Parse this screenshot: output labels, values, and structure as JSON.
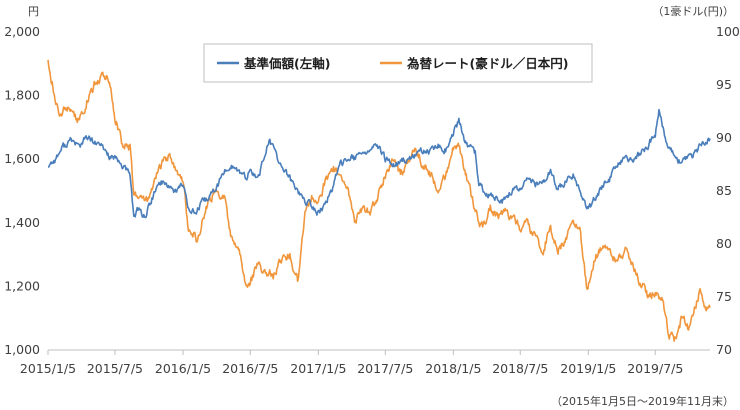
{
  "chart_data": {
    "type": "line",
    "left_unit": "円",
    "right_unit": "（1豪ドル(円)）",
    "period_note": "（2015年1月5日～2019年11月末）",
    "x_ticks": [
      "2015/1/5",
      "2015/7/5",
      "2016/1/5",
      "2016/7/5",
      "2017/1/5",
      "2017/7/5",
      "2018/1/5",
      "2018/7/5",
      "2019/1/5",
      "2019/7/5"
    ],
    "x_end": "2019/11/30",
    "y_left": {
      "min": 1000,
      "max": 2000,
      "ticks": [
        "1,000",
        "1,200",
        "1,400",
        "1,600",
        "1,800",
        "2,000"
      ]
    },
    "y_right": {
      "min": 70,
      "max": 100,
      "ticks": [
        "70",
        "75",
        "80",
        "85",
        "90",
        "95",
        "100"
      ]
    },
    "grid": false,
    "legend_position": "top",
    "series": [
      {
        "name": "基準価額(左軸)",
        "axis": "left",
        "color": "#4a7ebb",
        "points": [
          [
            "2015-01-05",
            1580
          ],
          [
            "2015-01-25",
            1600
          ],
          [
            "2015-02-15",
            1640
          ],
          [
            "2015-03-10",
            1660
          ],
          [
            "2015-03-31",
            1640
          ],
          [
            "2015-04-20",
            1670
          ],
          [
            "2015-05-10",
            1650
          ],
          [
            "2015-05-31",
            1640
          ],
          [
            "2015-06-20",
            1610
          ],
          [
            "2015-07-05",
            1600
          ],
          [
            "2015-07-25",
            1580
          ],
          [
            "2015-08-15",
            1550
          ],
          [
            "2015-08-25",
            1420
          ],
          [
            "2015-09-05",
            1440
          ],
          [
            "2015-09-25",
            1420
          ],
          [
            "2015-10-15",
            1480
          ],
          [
            "2015-11-05",
            1530
          ],
          [
            "2015-11-25",
            1520
          ],
          [
            "2015-12-15",
            1500
          ],
          [
            "2016-01-05",
            1520
          ],
          [
            "2016-01-20",
            1450
          ],
          [
            "2016-02-10",
            1430
          ],
          [
            "2016-02-25",
            1460
          ],
          [
            "2016-03-15",
            1480
          ],
          [
            "2016-04-05",
            1510
          ],
          [
            "2016-04-25",
            1560
          ],
          [
            "2016-05-15",
            1580
          ],
          [
            "2016-06-05",
            1560
          ],
          [
            "2016-06-20",
            1540
          ],
          [
            "2016-07-05",
            1560
          ],
          [
            "2016-07-25",
            1540
          ],
          [
            "2016-08-15",
            1620
          ],
          [
            "2016-08-25",
            1660
          ],
          [
            "2016-09-10",
            1620
          ],
          [
            "2016-09-30",
            1570
          ],
          [
            "2016-10-20",
            1540
          ],
          [
            "2016-11-10",
            1500
          ],
          [
            "2016-11-30",
            1470
          ],
          [
            "2016-12-20",
            1450
          ],
          [
            "2017-01-05",
            1430
          ],
          [
            "2017-01-25",
            1460
          ],
          [
            "2017-02-15",
            1520
          ],
          [
            "2017-03-05",
            1580
          ],
          [
            "2017-03-25",
            1610
          ],
          [
            "2017-04-15",
            1600
          ],
          [
            "2017-05-05",
            1620
          ],
          [
            "2017-05-25",
            1630
          ],
          [
            "2017-06-15",
            1640
          ],
          [
            "2017-07-05",
            1600
          ],
          [
            "2017-07-25",
            1580
          ],
          [
            "2017-08-15",
            1590
          ],
          [
            "2017-09-05",
            1600
          ],
          [
            "2017-09-25",
            1610
          ],
          [
            "2017-10-15",
            1630
          ],
          [
            "2017-11-05",
            1620
          ],
          [
            "2017-11-25",
            1640
          ],
          [
            "2017-12-15",
            1630
          ],
          [
            "2018-01-05",
            1680
          ],
          [
            "2018-01-20",
            1720
          ],
          [
            "2018-02-05",
            1650
          ],
          [
            "2018-02-20",
            1640
          ],
          [
            "2018-03-05",
            1620
          ],
          [
            "2018-03-15",
            1520
          ],
          [
            "2018-04-05",
            1490
          ],
          [
            "2018-04-25",
            1480
          ],
          [
            "2018-05-15",
            1460
          ],
          [
            "2018-06-05",
            1490
          ],
          [
            "2018-06-25",
            1510
          ],
          [
            "2018-07-05",
            1500
          ],
          [
            "2018-07-25",
            1540
          ],
          [
            "2018-08-15",
            1520
          ],
          [
            "2018-09-05",
            1530
          ],
          [
            "2018-09-25",
            1560
          ],
          [
            "2018-10-15",
            1510
          ],
          [
            "2018-11-05",
            1530
          ],
          [
            "2018-11-25",
            1550
          ],
          [
            "2018-12-15",
            1500
          ],
          [
            "2019-01-05",
            1440
          ],
          [
            "2019-01-25",
            1480
          ],
          [
            "2019-02-15",
            1520
          ],
          [
            "2019-03-05",
            1540
          ],
          [
            "2019-03-25",
            1580
          ],
          [
            "2019-04-15",
            1600
          ],
          [
            "2019-05-05",
            1590
          ],
          [
            "2019-05-25",
            1620
          ],
          [
            "2019-06-15",
            1640
          ],
          [
            "2019-06-30",
            1670
          ],
          [
            "2019-07-05",
            1680
          ],
          [
            "2019-07-15",
            1750
          ],
          [
            "2019-07-30",
            1680
          ],
          [
            "2019-08-15",
            1630
          ],
          [
            "2019-09-05",
            1590
          ],
          [
            "2019-09-25",
            1600
          ],
          [
            "2019-10-15",
            1610
          ],
          [
            "2019-11-05",
            1640
          ],
          [
            "2019-11-20",
            1660
          ],
          [
            "2019-11-30",
            1665
          ]
        ]
      },
      {
        "name": "為替レート(豪ドル／日本円)",
        "axis": "right",
        "color": "#f0963c",
        "points": [
          [
            "2015-01-05",
            97.5
          ],
          [
            "2015-01-20",
            94.5
          ],
          [
            "2015-02-05",
            92.0
          ],
          [
            "2015-02-20",
            93.0
          ],
          [
            "2015-03-10",
            92.5
          ],
          [
            "2015-03-31",
            91.5
          ],
          [
            "2015-04-20",
            93.5
          ],
          [
            "2015-05-10",
            95.0
          ],
          [
            "2015-05-31",
            96.0
          ],
          [
            "2015-06-20",
            95.5
          ],
          [
            "2015-07-05",
            92.0
          ],
          [
            "2015-07-25",
            89.5
          ],
          [
            "2015-08-15",
            89.0
          ],
          [
            "2015-08-25",
            84.5
          ],
          [
            "2015-09-10",
            85.0
          ],
          [
            "2015-09-30",
            84.0
          ],
          [
            "2015-10-20",
            86.0
          ],
          [
            "2015-11-10",
            87.5
          ],
          [
            "2015-11-30",
            88.5
          ],
          [
            "2015-12-20",
            87.0
          ],
          [
            "2016-01-05",
            86.0
          ],
          [
            "2016-01-20",
            81.5
          ],
          [
            "2016-02-10",
            80.5
          ],
          [
            "2016-02-25",
            82.0
          ],
          [
            "2016-03-15",
            84.0
          ],
          [
            "2016-04-05",
            85.0
          ],
          [
            "2016-04-25",
            84.5
          ],
          [
            "2016-05-15",
            80.5
          ],
          [
            "2016-06-05",
            79.5
          ],
          [
            "2016-06-24",
            76.0
          ],
          [
            "2016-07-05",
            76.5
          ],
          [
            "2016-07-25",
            78.0
          ],
          [
            "2016-08-15",
            77.5
          ],
          [
            "2016-09-05",
            77.0
          ],
          [
            "2016-09-25",
            78.5
          ],
          [
            "2016-10-20",
            79.0
          ],
          [
            "2016-11-10",
            76.5
          ],
          [
            "2016-11-30",
            83.0
          ],
          [
            "2016-12-20",
            84.5
          ],
          [
            "2017-01-05",
            84.0
          ],
          [
            "2017-01-25",
            86.0
          ],
          [
            "2017-02-15",
            87.0
          ],
          [
            "2017-03-05",
            86.5
          ],
          [
            "2017-03-25",
            85.0
          ],
          [
            "2017-04-15",
            82.0
          ],
          [
            "2017-05-05",
            83.5
          ],
          [
            "2017-05-25",
            83.0
          ],
          [
            "2017-06-15",
            84.5
          ],
          [
            "2017-07-05",
            86.5
          ],
          [
            "2017-07-25",
            88.0
          ],
          [
            "2017-08-15",
            86.5
          ],
          [
            "2017-09-05",
            88.0
          ],
          [
            "2017-09-25",
            89.0
          ],
          [
            "2017-10-15",
            87.5
          ],
          [
            "2017-11-05",
            86.5
          ],
          [
            "2017-11-25",
            85.0
          ],
          [
            "2017-12-15",
            86.5
          ],
          [
            "2018-01-05",
            89.0
          ],
          [
            "2018-01-20",
            89.5
          ],
          [
            "2018-02-05",
            87.0
          ],
          [
            "2018-02-20",
            85.0
          ],
          [
            "2018-03-05",
            83.0
          ],
          [
            "2018-03-25",
            81.5
          ],
          [
            "2018-04-15",
            83.5
          ],
          [
            "2018-05-05",
            82.5
          ],
          [
            "2018-05-25",
            83.0
          ],
          [
            "2018-06-15",
            82.5
          ],
          [
            "2018-07-05",
            81.5
          ],
          [
            "2018-07-25",
            82.0
          ],
          [
            "2018-08-15",
            80.5
          ],
          [
            "2018-09-05",
            79.5
          ],
          [
            "2018-09-25",
            81.5
          ],
          [
            "2018-10-15",
            79.5
          ],
          [
            "2018-11-05",
            80.5
          ],
          [
            "2018-11-25",
            82.0
          ],
          [
            "2018-12-15",
            81.0
          ],
          [
            "2019-01-02",
            75.5
          ],
          [
            "2019-01-20",
            78.5
          ],
          [
            "2019-02-10",
            79.5
          ],
          [
            "2019-03-05",
            79.0
          ],
          [
            "2019-03-25",
            78.5
          ],
          [
            "2019-04-15",
            79.5
          ],
          [
            "2019-05-05",
            78.0
          ],
          [
            "2019-05-25",
            76.5
          ],
          [
            "2019-06-15",
            75.0
          ],
          [
            "2019-07-05",
            75.5
          ],
          [
            "2019-07-25",
            74.5
          ],
          [
            "2019-08-10",
            71.5
          ],
          [
            "2019-08-25",
            71.0
          ],
          [
            "2019-09-15",
            73.0
          ],
          [
            "2019-10-05",
            72.0
          ],
          [
            "2019-10-25",
            74.5
          ],
          [
            "2019-11-05",
            75.5
          ],
          [
            "2019-11-20",
            74.0
          ],
          [
            "2019-11-30",
            74.0
          ]
        ]
      }
    ]
  }
}
